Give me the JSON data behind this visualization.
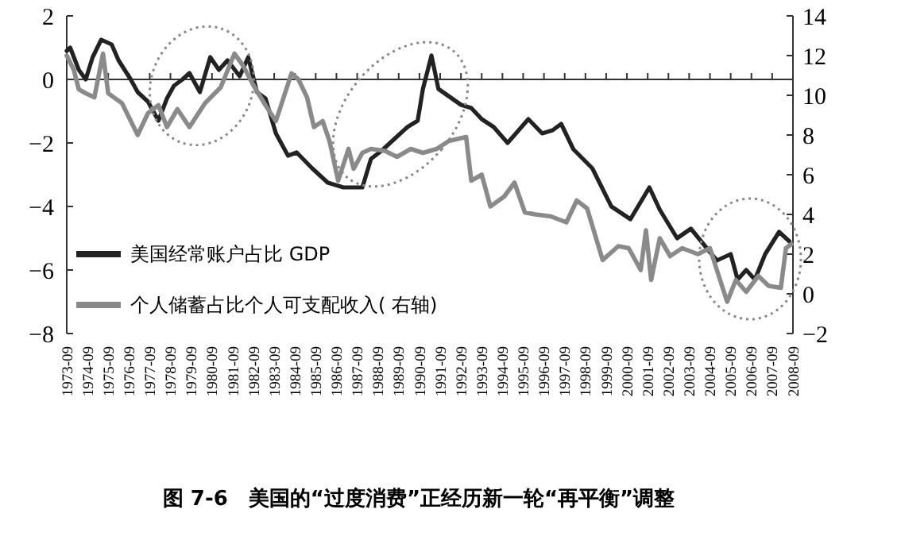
{
  "chart_data": {
    "type": "line",
    "title": "图 7-6　美国的“过度消费”正经历新一轮“再平衡”调整",
    "legend": "bottom left",
    "line_style": "solid",
    "marker": "none",
    "xlim": [
      "1973-09",
      "2008-09"
    ],
    "xticks": [
      "1973-09",
      "1974-09",
      "1975-09",
      "1976-09",
      "1977-09",
      "1978-09",
      "1979-09",
      "1980-09",
      "1981-09",
      "1982-09",
      "1983-09",
      "1984-09",
      "1985-09",
      "1986-09",
      "1987-09",
      "1988-09",
      "1989-09",
      "1990-09",
      "1991-09",
      "1992-09",
      "1993-09",
      "1994-09",
      "1995-09",
      "1996-09",
      "1997-09",
      "1998-09",
      "1999-09",
      "2000-09",
      "2001-09",
      "2002-09",
      "2003-09",
      "2004-09",
      "2005-09",
      "2006-09",
      "2007-09",
      "2008-09"
    ],
    "ylim": [
      -8,
      2
    ],
    "yticks": [
      -8,
      -6,
      -4,
      -2,
      0,
      2
    ],
    "y2lim": [
      -2,
      14
    ],
    "y2ticks": [
      -2,
      0,
      2,
      4,
      6,
      8,
      10,
      12,
      14
    ],
    "series": [
      {
        "name": "美国经常账户占比 GDP",
        "color": "#222222",
        "x": [
          "1973-09",
          "1973-11",
          "1974-04",
          "1974-08",
          "1974-12",
          "1975-05",
          "1975-11",
          "1976-03",
          "1976-10",
          "1977-02",
          "1977-08",
          "1978-02",
          "1978-07",
          "1978-11",
          "1979-04",
          "1979-08",
          "1980-02",
          "1980-08",
          "1981-01",
          "1981-06",
          "1982-01",
          "1982-06",
          "1982-11",
          "1983-04",
          "1983-10",
          "1984-05",
          "1984-10",
          "1985-07",
          "1986-04",
          "1987-01",
          "1987-12",
          "1988-05",
          "1988-11",
          "1989-06",
          "1990-02",
          "1990-08",
          "1990-11",
          "1991-04",
          "1991-08",
          "1992-09",
          "1993-03",
          "1993-09",
          "1994-04",
          "1994-12",
          "1995-12",
          "1996-08",
          "1997-02",
          "1997-07",
          "1998-02",
          "1999-01",
          "1999-12",
          "2000-11",
          "2001-10",
          "2002-04",
          "2003-02",
          "2003-10",
          "2004-07",
          "2005-01",
          "2005-09",
          "2006-01",
          "2006-06",
          "2006-11",
          "2007-05",
          "2008-01",
          "2008-07"
        ],
        "values": [
          0.9,
          1.0,
          0.3,
          0.0,
          0.7,
          1.25,
          1.1,
          0.6,
          0.0,
          -0.4,
          -0.7,
          -1.3,
          -0.6,
          -0.2,
          0.0,
          0.2,
          -0.4,
          0.7,
          0.3,
          0.6,
          0.1,
          0.7,
          -0.4,
          -0.6,
          -1.7,
          -2.4,
          -2.3,
          -2.8,
          -3.25,
          -3.4,
          -3.4,
          -2.5,
          -2.25,
          -1.9,
          -1.5,
          -1.3,
          -0.3,
          0.75,
          -0.3,
          -0.8,
          -0.9,
          -1.25,
          -1.5,
          -2.0,
          -1.25,
          -1.7,
          -1.6,
          -1.4,
          -2.2,
          -2.8,
          -4.0,
          -4.4,
          -3.4,
          -4.1,
          -5.0,
          -4.7,
          -5.3,
          -5.7,
          -5.5,
          -6.3,
          -6.0,
          -6.3,
          -5.5,
          -4.8,
          -5.1
        ]
      },
      {
        "name": "个人储蓄占比个人可支配收入( 右轴)",
        "color": "#8a8a8a",
        "axis": "y2",
        "x": [
          "1973-09",
          "1974-01",
          "1974-04",
          "1974-08",
          "1975-01",
          "1975-06",
          "1975-09",
          "1976-05",
          "1977-02",
          "1977-08",
          "1978-02",
          "1978-07",
          "1979-01",
          "1979-08",
          "1980-05",
          "1981-02",
          "1981-10",
          "1982-03",
          "1982-09",
          "1983-04",
          "1983-10",
          "1984-07",
          "1984-11",
          "1985-04",
          "1985-08",
          "1986-01",
          "1986-05",
          "1986-10",
          "1987-04",
          "1987-07",
          "1987-12",
          "1988-05",
          "1989-01",
          "1989-08",
          "1990-04",
          "1990-11",
          "1991-07",
          "1992-02",
          "1992-12",
          "1993-03",
          "1993-09",
          "1994-02",
          "1994-10",
          "1995-04",
          "1995-10",
          "1996-04",
          "1997-01",
          "1997-10",
          "1998-04",
          "1998-10",
          "1999-07",
          "2000-04",
          "2000-10",
          "2001-05",
          "2001-08",
          "2001-11",
          "2002-04",
          "2002-10",
          "2003-05",
          "2004-02",
          "2004-09",
          "2005-01",
          "2005-07",
          "2005-12",
          "2006-06",
          "2007-01",
          "2007-07",
          "2008-02",
          "2008-05",
          "2008-08"
        ],
        "values": [
          12.0,
          11.3,
          10.3,
          10.1,
          9.9,
          12.1,
          10.1,
          9.6,
          8.0,
          9.1,
          9.5,
          8.4,
          9.3,
          8.4,
          9.6,
          10.4,
          12.1,
          11.5,
          10.5,
          9.5,
          8.7,
          11.1,
          10.8,
          9.9,
          8.4,
          8.7,
          7.7,
          5.7,
          7.3,
          6.3,
          7.1,
          7.3,
          7.2,
          6.9,
          7.3,
          7.1,
          7.3,
          7.7,
          7.9,
          5.7,
          6.0,
          4.4,
          4.9,
          5.6,
          4.1,
          4.0,
          3.9,
          3.6,
          4.7,
          4.3,
          1.7,
          2.4,
          2.3,
          1.2,
          3.2,
          0.7,
          2.8,
          1.9,
          2.3,
          2.0,
          2.3,
          1.2,
          -0.4,
          0.7,
          0.1,
          0.9,
          0.4,
          0.3,
          2.3,
          2.5
        ]
      }
    ]
  }
}
